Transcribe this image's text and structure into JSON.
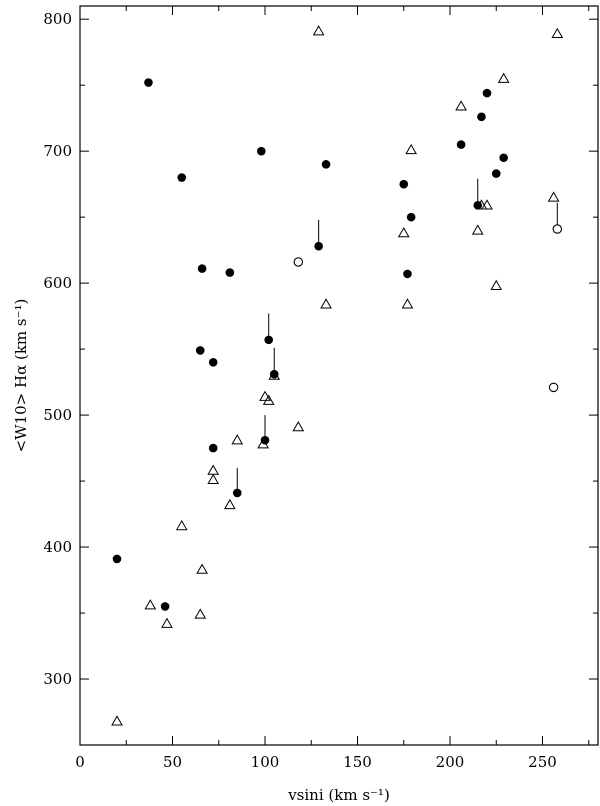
{
  "chart_data": {
    "type": "scatter",
    "title": "",
    "xlabel": "vsini (km s⁻¹)",
    "ylabel": "<W10> Hα (km s⁻¹)",
    "xlim": [
      0,
      280
    ],
    "ylim": [
      250,
      810
    ],
    "x_ticks": [
      0,
      50,
      100,
      150,
      200,
      250
    ],
    "y_ticks": [
      300,
      400,
      500,
      600,
      700,
      800
    ],
    "grid": false,
    "series": [
      {
        "marker": "filled-circle",
        "points": [
          [
            20,
            391
          ],
          [
            37,
            752
          ],
          [
            46,
            355
          ],
          [
            55,
            680
          ],
          [
            65,
            549
          ],
          [
            66,
            611
          ],
          [
            72,
            475
          ],
          [
            72,
            540
          ],
          [
            81,
            608
          ],
          [
            85,
            441
          ],
          [
            98,
            700
          ],
          [
            100,
            481
          ],
          [
            102,
            557
          ],
          [
            105,
            531
          ],
          [
            129,
            628
          ],
          [
            133,
            690
          ],
          [
            175,
            675
          ],
          [
            177,
            607
          ],
          [
            179,
            650
          ],
          [
            206,
            705
          ],
          [
            215,
            659
          ],
          [
            217,
            726
          ],
          [
            220,
            744
          ],
          [
            225,
            683
          ],
          [
            229,
            695
          ]
        ]
      },
      {
        "marker": "open-circle",
        "points": [
          [
            118,
            616
          ],
          [
            256,
            521
          ],
          [
            258,
            641
          ]
        ]
      },
      {
        "marker": "open-triangle",
        "points": [
          [
            20,
            268
          ],
          [
            38,
            356
          ],
          [
            47,
            342
          ],
          [
            55,
            416
          ],
          [
            65,
            349
          ],
          [
            66,
            383
          ],
          [
            72,
            458
          ],
          [
            72,
            451
          ],
          [
            81,
            432
          ],
          [
            85,
            481
          ],
          [
            99,
            478
          ],
          [
            100,
            514
          ],
          [
            102,
            511
          ],
          [
            105,
            530
          ],
          [
            118,
            491
          ],
          [
            129,
            791
          ],
          [
            133,
            584
          ],
          [
            175,
            638
          ],
          [
            177,
            584
          ],
          [
            179,
            701
          ],
          [
            206,
            734
          ],
          [
            215,
            640
          ],
          [
            217,
            659
          ],
          [
            220,
            659
          ],
          [
            225,
            598
          ],
          [
            229,
            755
          ],
          [
            256,
            665
          ],
          [
            258,
            789
          ]
        ]
      }
    ],
    "connectors": [
      [
        85,
        441,
        460
      ],
      [
        100,
        481,
        500
      ],
      [
        102,
        557,
        577
      ],
      [
        105,
        531,
        551
      ],
      [
        129,
        628,
        648
      ],
      [
        215,
        659,
        679
      ],
      [
        258,
        641,
        661
      ]
    ]
  }
}
